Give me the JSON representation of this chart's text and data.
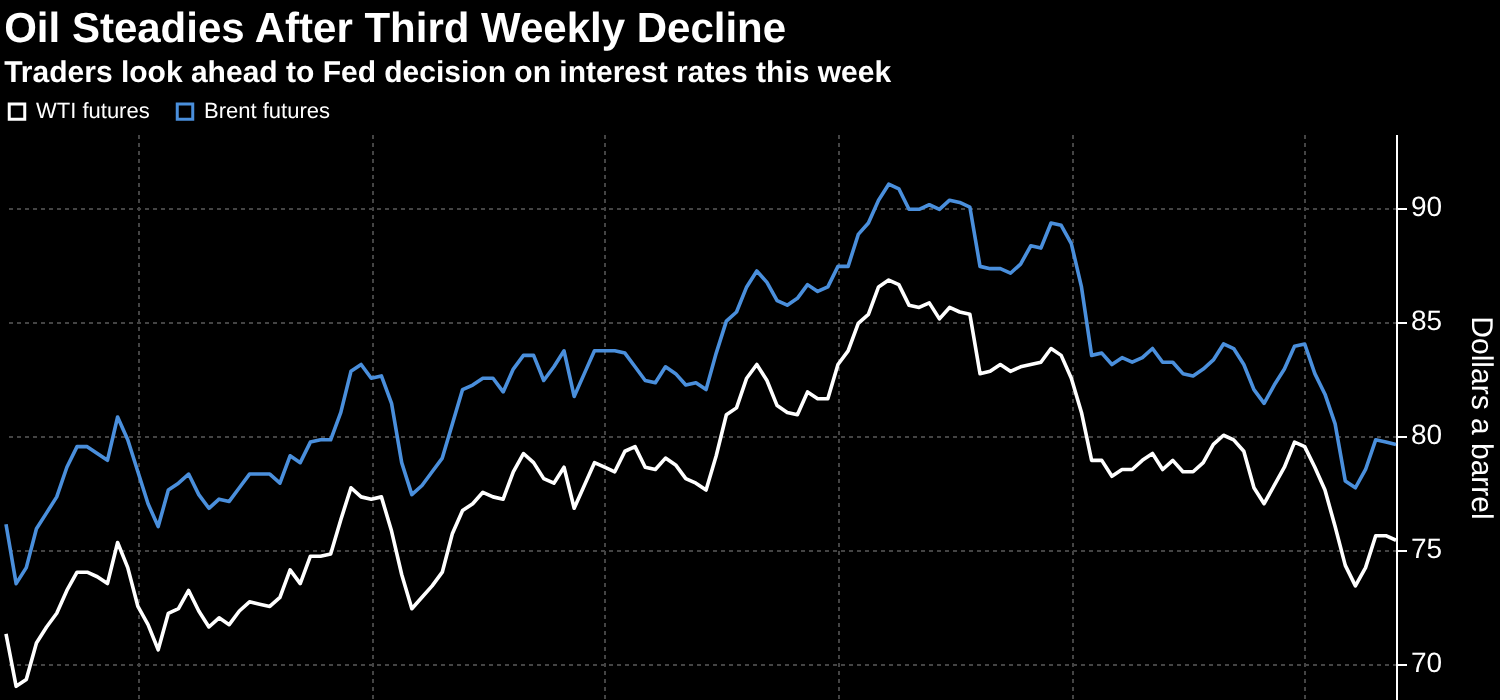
{
  "chart_data": {
    "type": "line",
    "title": "Oil Steadies After Third Weekly Decline",
    "subtitle": "Traders look ahead to Fed decision on interest rates this week",
    "ylabel": "Dollars a barrel",
    "categories": [
      null,
      null,
      null,
      null,
      null,
      null,
      null,
      null,
      null,
      null,
      null,
      null,
      null,
      null,
      null,
      null,
      null,
      null,
      null,
      null,
      null,
      null,
      null,
      null,
      null,
      null,
      null,
      null,
      null,
      null,
      null,
      null,
      null,
      null,
      null,
      null,
      null,
      null,
      null,
      null,
      null,
      null,
      null,
      null,
      null,
      null,
      null,
      null,
      null,
      null,
      null,
      null,
      null,
      null,
      null,
      null,
      null,
      null,
      null,
      null,
      null,
      null,
      null,
      null,
      null,
      null,
      null,
      null,
      null,
      null,
      null,
      null,
      null,
      null,
      null,
      null,
      null,
      null,
      null,
      null,
      null,
      null,
      null,
      null,
      null,
      null,
      null,
      null,
      null,
      null,
      null,
      null,
      null,
      null,
      null,
      null,
      null,
      null,
      null,
      null,
      null,
      null,
      null,
      null,
      null,
      null,
      null,
      null,
      null,
      null,
      null,
      null,
      null,
      null,
      null,
      null,
      null,
      null,
      null,
      null,
      null,
      null,
      null,
      null,
      null,
      null,
      null,
      null,
      null,
      null,
      null,
      null,
      null,
      null,
      null,
      null,
      null,
      null
    ],
    "series": [
      {
        "name": "WTI futures",
        "color": "#ffffff",
        "values": [
          71.3,
          69.0,
          69.3,
          70.9,
          71.6,
          72.2,
          73.2,
          74.0,
          74.0,
          73.8,
          73.5,
          75.3,
          74.2,
          72.5,
          71.7,
          70.6,
          72.2,
          72.4,
          73.2,
          72.3,
          71.6,
          72.0,
          71.7,
          72.3,
          72.7,
          72.6,
          72.5,
          72.9,
          74.1,
          73.5,
          74.7,
          74.7,
          74.8,
          76.3,
          77.7,
          77.3,
          77.2,
          77.3,
          75.8,
          73.9,
          72.4,
          72.9,
          73.4,
          74.0,
          75.7,
          76.7,
          77.0,
          77.5,
          77.3,
          77.2,
          78.4,
          79.2,
          78.8,
          78.1,
          77.9,
          78.6,
          76.8,
          77.8,
          78.8,
          78.6,
          78.4,
          79.3,
          79.5,
          78.6,
          78.5,
          79.0,
          78.7,
          78.1,
          77.9,
          77.6,
          79.1,
          80.9,
          81.2,
          82.5,
          83.1,
          82.4,
          81.3,
          81.0,
          80.9,
          81.9,
          81.6,
          81.6,
          83.1,
          83.7,
          84.9,
          85.3,
          86.5,
          86.8,
          86.6,
          85.7,
          85.6,
          85.8,
          85.1,
          85.6,
          85.4,
          85.3,
          82.7,
          82.8,
          83.1,
          82.8,
          83.0,
          83.1,
          83.2,
          83.8,
          83.5,
          82.5,
          81.0,
          78.9,
          78.9,
          78.2,
          78.5,
          78.5,
          78.9,
          79.2,
          78.5,
          78.9,
          78.4,
          78.4,
          78.8,
          79.6,
          80.0,
          79.8,
          79.3,
          77.7,
          77.0,
          77.8,
          78.6,
          79.7,
          79.5,
          78.6,
          77.6,
          76.0,
          74.3,
          73.4,
          74.2,
          75.6,
          75.6,
          75.4
        ]
      },
      {
        "name": "Brent futures",
        "color": "#4a8fdc",
        "values": [
          76.1,
          73.5,
          74.2,
          75.9,
          76.6,
          77.3,
          78.6,
          79.5,
          79.5,
          79.2,
          78.9,
          80.8,
          79.8,
          78.4,
          77.0,
          76.0,
          77.6,
          77.9,
          78.3,
          77.4,
          76.8,
          77.2,
          77.1,
          77.7,
          78.3,
          78.3,
          78.3,
          77.9,
          79.1,
          78.8,
          79.7,
          79.8,
          79.8,
          81.0,
          82.8,
          83.1,
          82.5,
          82.6,
          81.4,
          78.8,
          77.4,
          77.8,
          78.4,
          79.0,
          80.5,
          82.0,
          82.2,
          82.5,
          82.5,
          81.9,
          82.9,
          83.5,
          83.5,
          82.4,
          83.0,
          83.7,
          81.7,
          82.7,
          83.7,
          83.7,
          83.7,
          83.6,
          83.0,
          82.4,
          82.3,
          83.0,
          82.7,
          82.2,
          82.3,
          82.0,
          83.6,
          85.0,
          85.4,
          86.5,
          87.2,
          86.7,
          85.9,
          85.7,
          86.0,
          86.6,
          86.3,
          86.5,
          87.4,
          87.4,
          88.8,
          89.3,
          90.3,
          91.0,
          90.8,
          89.9,
          89.9,
          90.1,
          89.9,
          90.3,
          90.2,
          90.0,
          87.4,
          87.3,
          87.3,
          87.1,
          87.5,
          88.3,
          88.2,
          89.3,
          89.2,
          88.4,
          86.5,
          83.5,
          83.6,
          83.1,
          83.4,
          83.2,
          83.4,
          83.8,
          83.2,
          83.2,
          82.7,
          82.6,
          82.9,
          83.3,
          84.0,
          83.8,
          83.1,
          82.0,
          81.4,
          82.2,
          82.9,
          83.9,
          84.0,
          82.7,
          81.8,
          80.5,
          78.0,
          77.7,
          78.5,
          79.8,
          79.7,
          79.6
        ]
      }
    ],
    "ylim": [
      68.4,
      93.2
    ],
    "yticks": [
      70,
      75,
      80,
      85,
      90
    ],
    "grid": true,
    "legend": "top left",
    "line_style": "solid",
    "marker": "none"
  }
}
